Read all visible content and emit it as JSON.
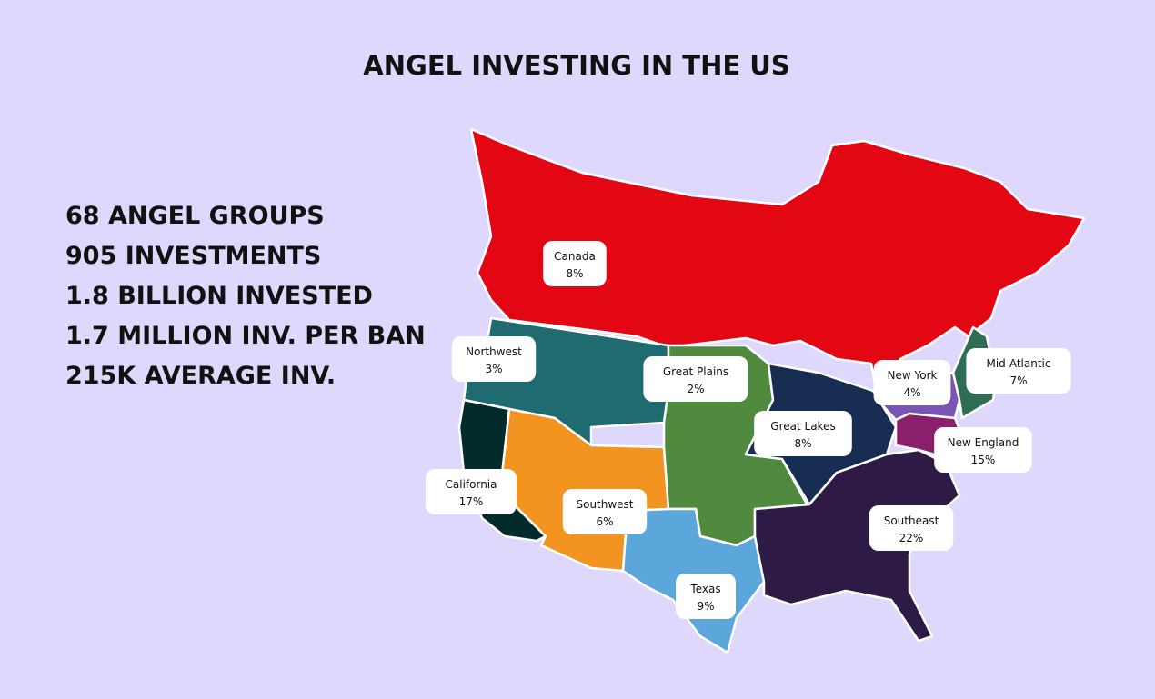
{
  "title": "ANGEL INVESTING IN THE US",
  "stats": [
    "68 ANGEL GROUPS",
    "905 INVESTMENTS",
    "1.8 BILLION INVESTED",
    "1.7 MILLION INV. PER BAN",
    "215K AVERAGE INV."
  ],
  "regions": [
    {
      "name": "Canada",
      "value": 8,
      "value_label": "8%",
      "color": "#e30613"
    },
    {
      "name": "Northwest",
      "value": 3,
      "value_label": "3%",
      "color": "#1f6b6f"
    },
    {
      "name": "California",
      "value": 17,
      "value_label": "17%",
      "color": "#042b2b"
    },
    {
      "name": "Southwest",
      "value": 6,
      "value_label": "6%",
      "color": "#f39420"
    },
    {
      "name": "Great Plains",
      "value": 2,
      "value_label": "2%",
      "color": "#4f8a3f"
    },
    {
      "name": "Texas",
      "value": 9,
      "value_label": "9%",
      "color": "#5ba7dc"
    },
    {
      "name": "Great Lakes",
      "value": 8,
      "value_label": "8%",
      "color": "#172e52"
    },
    {
      "name": "Southeast",
      "value": 22,
      "value_label": "22%",
      "color": "#2d1a45"
    },
    {
      "name": "New York",
      "value": 4,
      "value_label": "4%",
      "color": "#7b55b3"
    },
    {
      "name": "Mid-Atlantic",
      "value": 7,
      "value_label": "7%",
      "color": "#8c1f6c"
    },
    {
      "name": "New England",
      "value": 15,
      "value_label": "15%",
      "color": "#2f6e55"
    }
  ]
}
